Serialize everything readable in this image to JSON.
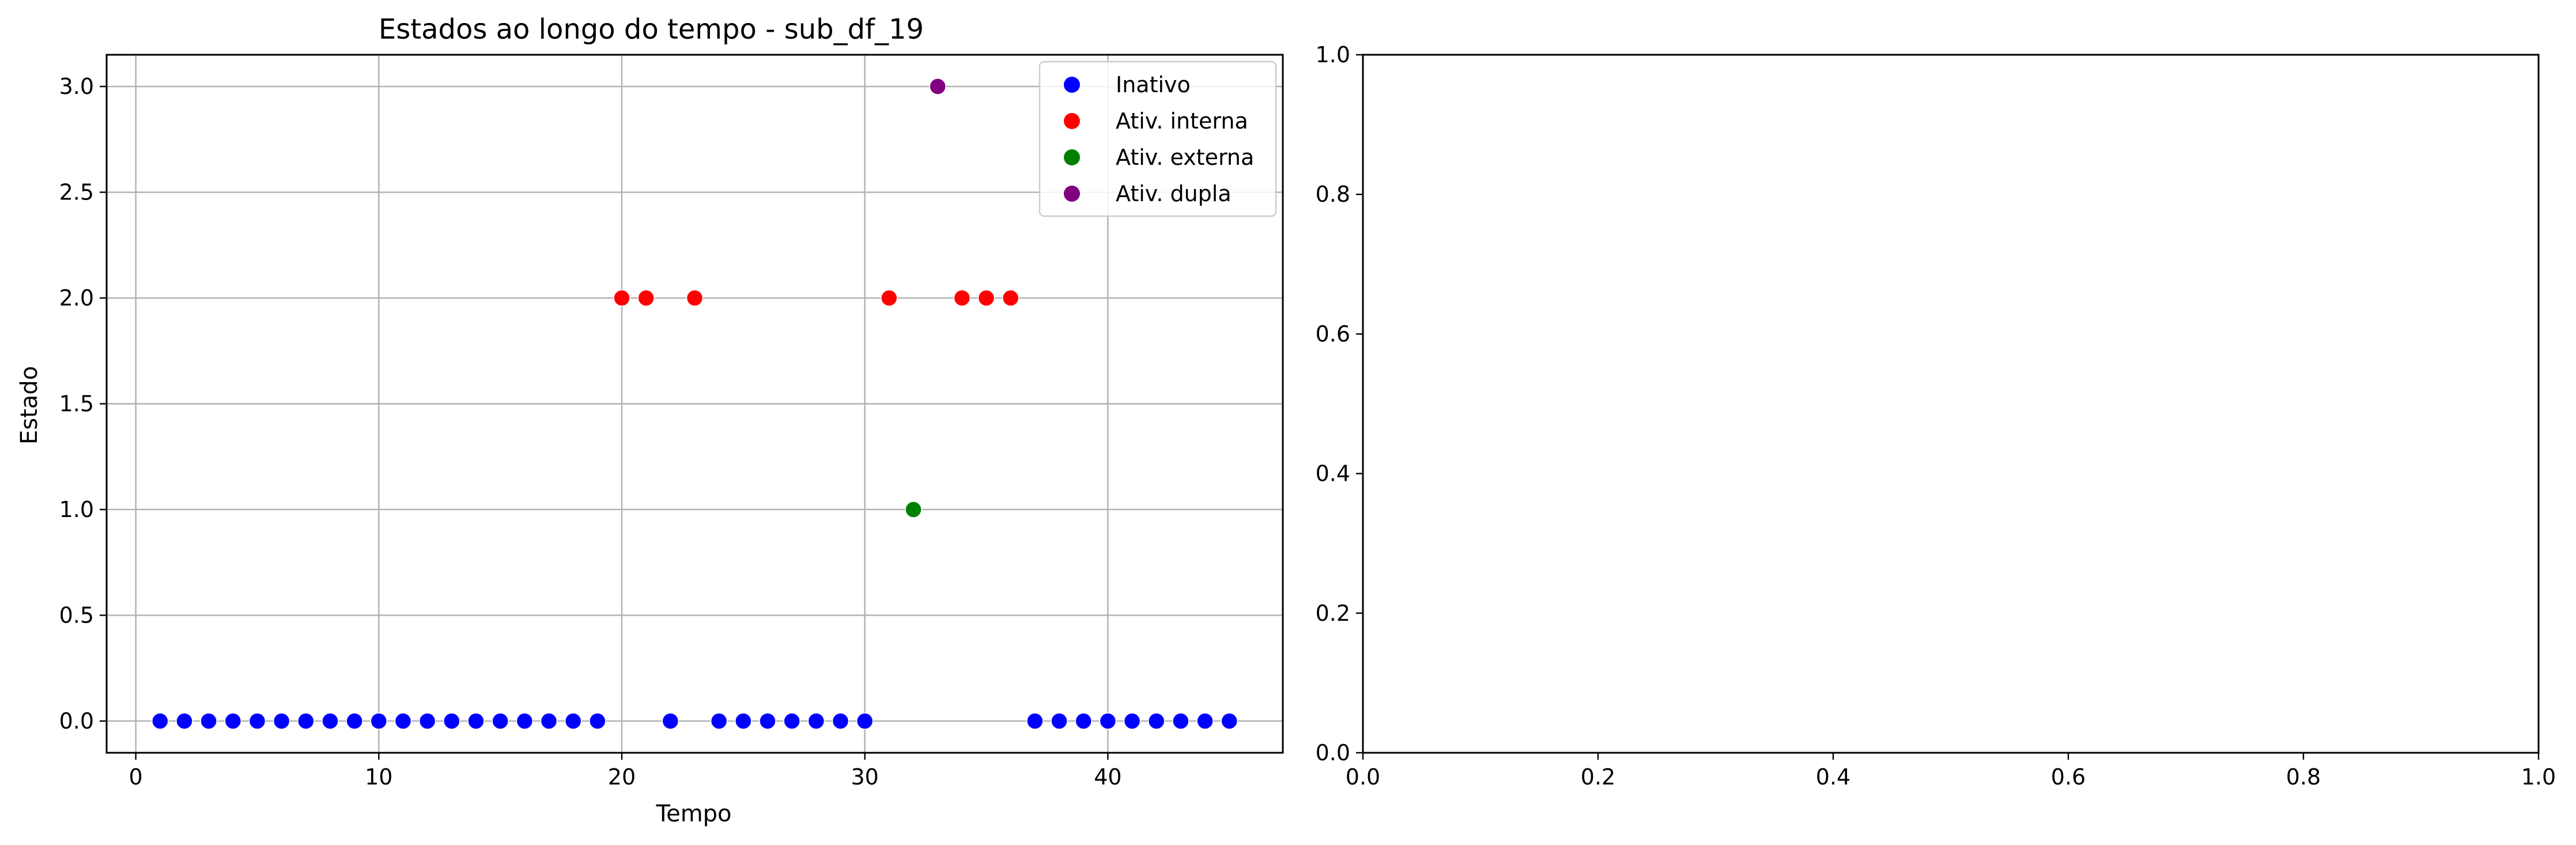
{
  "chart_data": [
    {
      "type": "scatter",
      "title": "Estados ao longo do tempo - sub_df_19",
      "xlabel": "Tempo",
      "ylabel": "Estado",
      "xlim": [
        -1.2,
        47.2
      ],
      "ylim": [
        -0.15,
        3.15
      ],
      "xticks": [
        0,
        10,
        20,
        30,
        40
      ],
      "yticks": [
        0.0,
        0.5,
        1.0,
        1.5,
        2.0,
        2.5,
        3.0
      ],
      "xtick_labels": [
        "0",
        "10",
        "20",
        "30",
        "40"
      ],
      "ytick_labels": [
        "0.0",
        "0.5",
        "1.0",
        "1.5",
        "2.0",
        "2.5",
        "3.0"
      ],
      "grid": true,
      "legend_position": "top-right",
      "series": [
        {
          "name": "Inativo",
          "color": "#0000ff",
          "x": [
            1,
            2,
            3,
            4,
            5,
            6,
            7,
            8,
            9,
            10,
            11,
            12,
            13,
            14,
            15,
            16,
            17,
            18,
            19,
            22,
            24,
            25,
            26,
            27,
            28,
            29,
            30,
            37,
            38,
            39,
            40,
            41,
            42,
            43,
            44,
            45
          ],
          "y": [
            0,
            0,
            0,
            0,
            0,
            0,
            0,
            0,
            0,
            0,
            0,
            0,
            0,
            0,
            0,
            0,
            0,
            0,
            0,
            0,
            0,
            0,
            0,
            0,
            0,
            0,
            0,
            0,
            0,
            0,
            0,
            0,
            0,
            0,
            0,
            0
          ]
        },
        {
          "name": "Ativ. interna",
          "color": "#ff0000",
          "x": [
            20,
            21,
            23,
            31,
            34,
            35,
            36
          ],
          "y": [
            2,
            2,
            2,
            2,
            2,
            2,
            2
          ]
        },
        {
          "name": "Ativ. externa",
          "color": "#008000",
          "x": [
            32
          ],
          "y": [
            1
          ]
        },
        {
          "name": "Ativ. dupla",
          "color": "#800080",
          "x": [
            33
          ],
          "y": [
            3
          ]
        }
      ]
    },
    {
      "type": "scatter",
      "title": "",
      "xlabel": "",
      "ylabel": "",
      "xlim": [
        0,
        1
      ],
      "ylim": [
        0,
        1
      ],
      "xticks": [
        0,
        0.2,
        0.4,
        0.6,
        0.8,
        1.0
      ],
      "yticks": [
        0,
        0.2,
        0.4,
        0.6,
        0.8,
        1.0
      ],
      "xtick_labels": [
        "0.0",
        "0.2",
        "0.4",
        "0.6",
        "0.8",
        "1.0"
      ],
      "ytick_labels": [
        "0.0",
        "0.2",
        "0.4",
        "0.6",
        "0.8",
        "1.0"
      ],
      "grid": false,
      "series": []
    }
  ]
}
